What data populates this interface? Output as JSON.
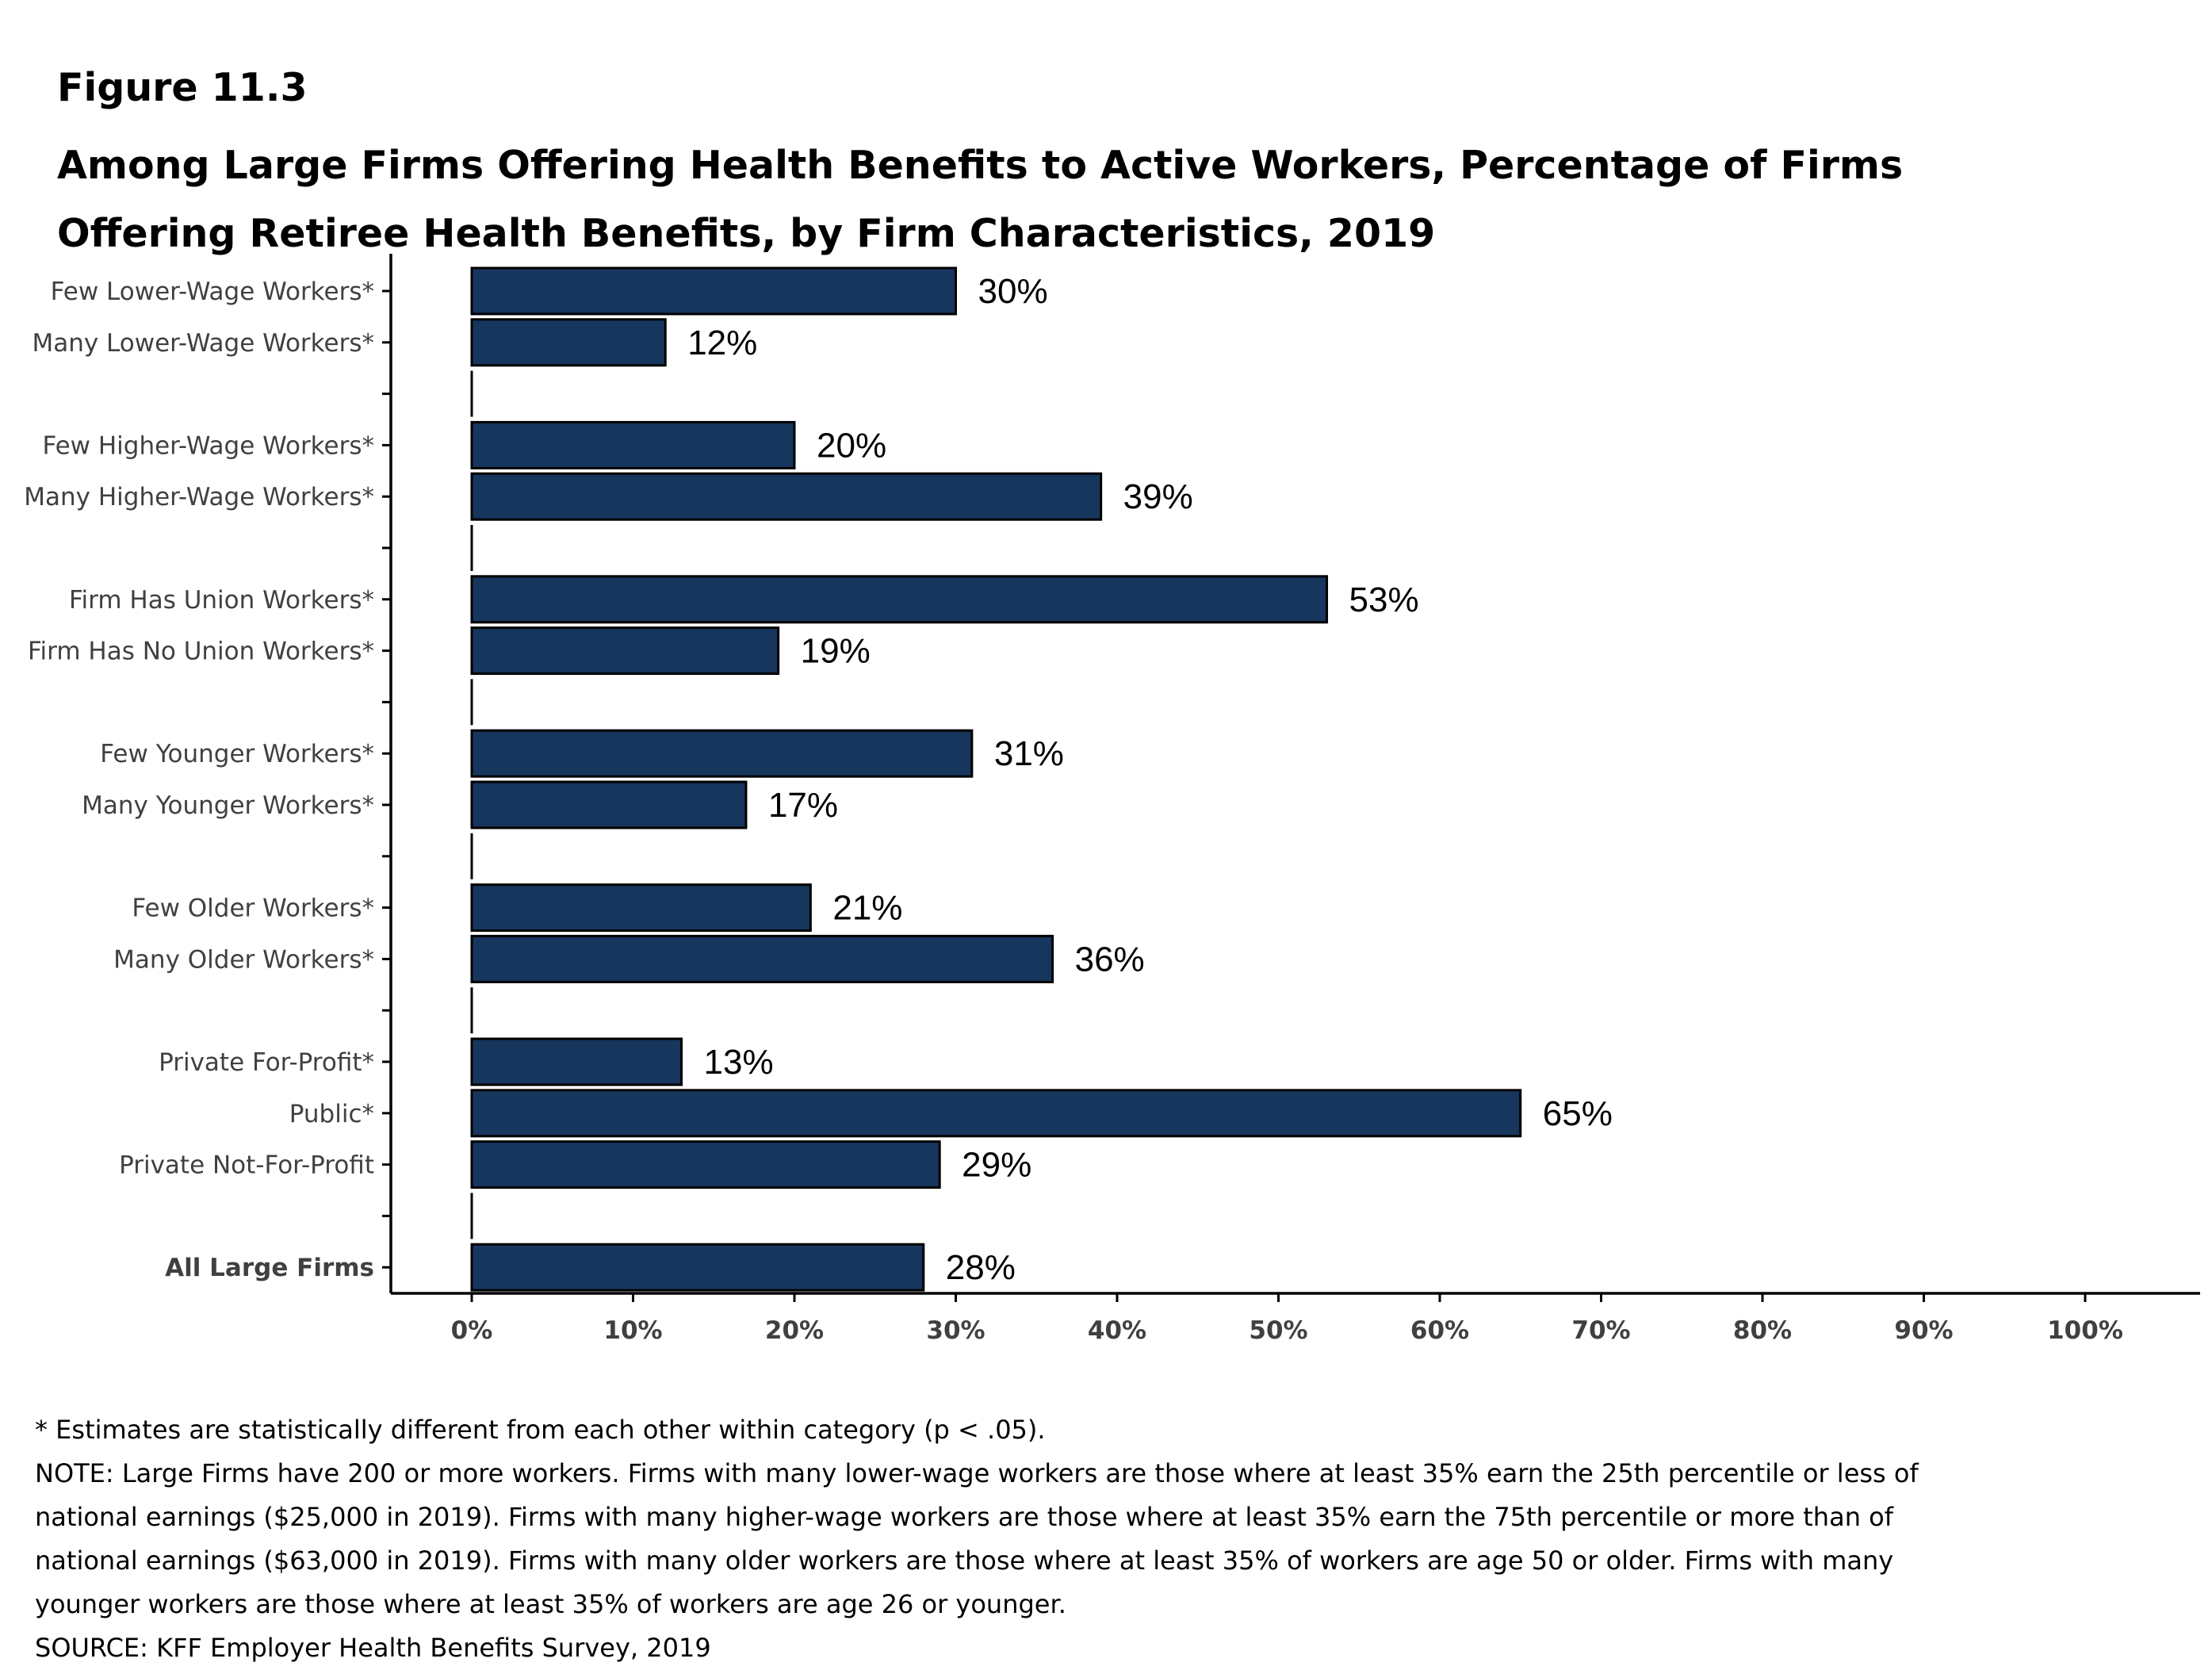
{
  "figure_label": "Figure 11.3",
  "title": "Among Large Firms Offering Health Benefits to Active Workers, Percentage of Firms Offering Retiree Health Benefits, by Firm Characteristics, 2019",
  "footer": {
    "significance_note": "* Estimates are statistically different from each other within category (p < .05).",
    "note": "NOTE: Large Firms have 200 or more workers. Firms with many lower-wage workers are those where at least 35% earn the 25th percentile or less of national earnings ($25,000 in 2019). Firms with many higher-wage workers are those where at least 35% earn the 75th percentile or more than of national earnings ($63,000 in 2019). Firms with many older workers are those where at least 35% of workers are age 50 or older. Firms with many younger workers are those where at least 35% of workers are age 26 or younger.",
    "source": "SOURCE: KFF Employer Health Benefits Survey, 2019"
  },
  "colors": {
    "bar_fill": "#17365d",
    "bar_stroke": "#000000",
    "axis": "#000000",
    "category_label": "#404040",
    "tick_label": "#404040",
    "value_label": "#000000"
  },
  "chart_data": {
    "type": "bar",
    "orientation": "horizontal",
    "xlim": [
      0,
      100
    ],
    "x_ticks": [
      "0%",
      "10%",
      "20%",
      "30%",
      "40%",
      "50%",
      "60%",
      "70%",
      "80%",
      "90%",
      "100%"
    ],
    "grid": false,
    "legend": "none",
    "groups": [
      {
        "bars": [
          {
            "label": "Few Lower-Wage Workers*",
            "value": 30,
            "value_label": "30%"
          },
          {
            "label": "Many Lower-Wage Workers*",
            "value": 12,
            "value_label": "12%"
          }
        ]
      },
      {
        "bars": [
          {
            "label": "Few Higher-Wage Workers*",
            "value": 20,
            "value_label": "20%"
          },
          {
            "label": "Many Higher-Wage Workers*",
            "value": 39,
            "value_label": "39%"
          }
        ]
      },
      {
        "bars": [
          {
            "label": "Firm Has Union Workers*",
            "value": 53,
            "value_label": "53%"
          },
          {
            "label": "Firm Has No Union Workers*",
            "value": 19,
            "value_label": "19%"
          }
        ]
      },
      {
        "bars": [
          {
            "label": "Few Younger Workers*",
            "value": 31,
            "value_label": "31%"
          },
          {
            "label": "Many Younger Workers*",
            "value": 17,
            "value_label": "17%"
          }
        ]
      },
      {
        "bars": [
          {
            "label": "Few Older Workers*",
            "value": 21,
            "value_label": "21%"
          },
          {
            "label": "Many Older Workers*",
            "value": 36,
            "value_label": "36%"
          }
        ]
      },
      {
        "bars": [
          {
            "label": "Private For-Profit*",
            "value": 13,
            "value_label": "13%"
          },
          {
            "label": "Public*",
            "value": 65,
            "value_label": "65%"
          },
          {
            "label": "Private Not-For-Profit",
            "value": 29,
            "value_label": "29%"
          }
        ]
      },
      {
        "bars": [
          {
            "label": "All Large Firms",
            "value": 28,
            "value_label": "28%",
            "bold": true
          }
        ]
      }
    ]
  }
}
